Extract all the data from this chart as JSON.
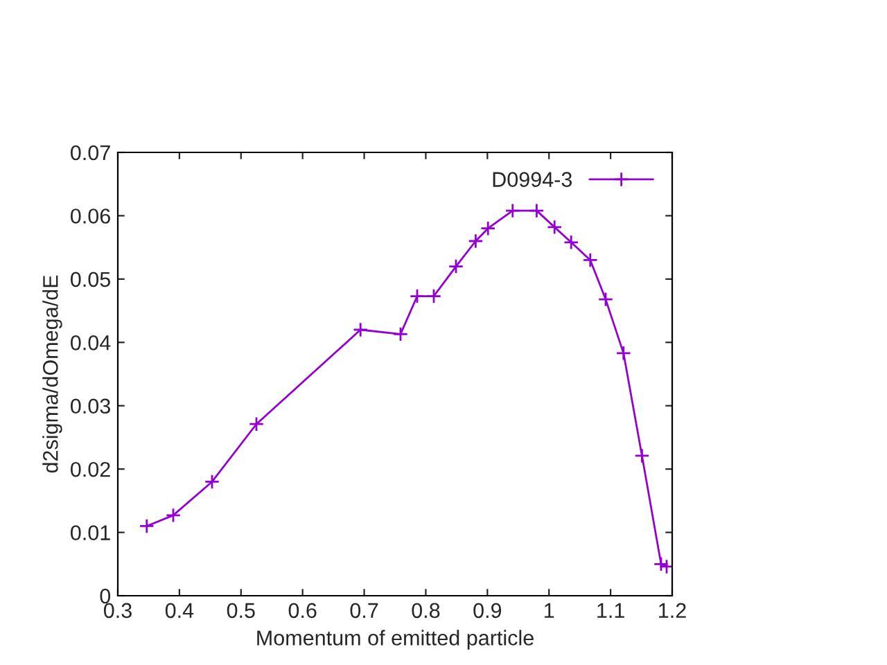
{
  "chart_data": {
    "type": "line",
    "xlabel": "Momentum of emitted particle",
    "ylabel": "d2sigma/dOmega/dE",
    "series": [
      {
        "name": "D0994-3",
        "color": "#9400d3",
        "x": [
          0.347,
          0.39,
          0.453,
          0.525,
          0.694,
          0.759,
          0.786,
          0.813,
          0.849,
          0.881,
          0.901,
          0.941,
          0.98,
          1.009,
          1.036,
          1.067,
          1.092,
          1.121,
          1.151,
          1.182,
          1.191
        ],
        "values": [
          0.011,
          0.0127,
          0.018,
          0.0271,
          0.042,
          0.0413,
          0.0473,
          0.0473,
          0.052,
          0.056,
          0.058,
          0.0608,
          0.0608,
          0.0582,
          0.0558,
          0.053,
          0.0468,
          0.0383,
          0.0221,
          0.005,
          0.0046
        ]
      }
    ],
    "xlim": [
      0.3,
      1.2
    ],
    "xticks": [
      0.3,
      0.4,
      0.5,
      0.6,
      0.7,
      0.8,
      0.9,
      1,
      1.1,
      1.2
    ],
    "ylim": [
      0,
      0.07
    ],
    "yticks": [
      0,
      0.01,
      0.02,
      0.03,
      0.04,
      0.05,
      0.06,
      0.07
    ],
    "marker": "cross",
    "grid": false,
    "legend": "top right"
  }
}
